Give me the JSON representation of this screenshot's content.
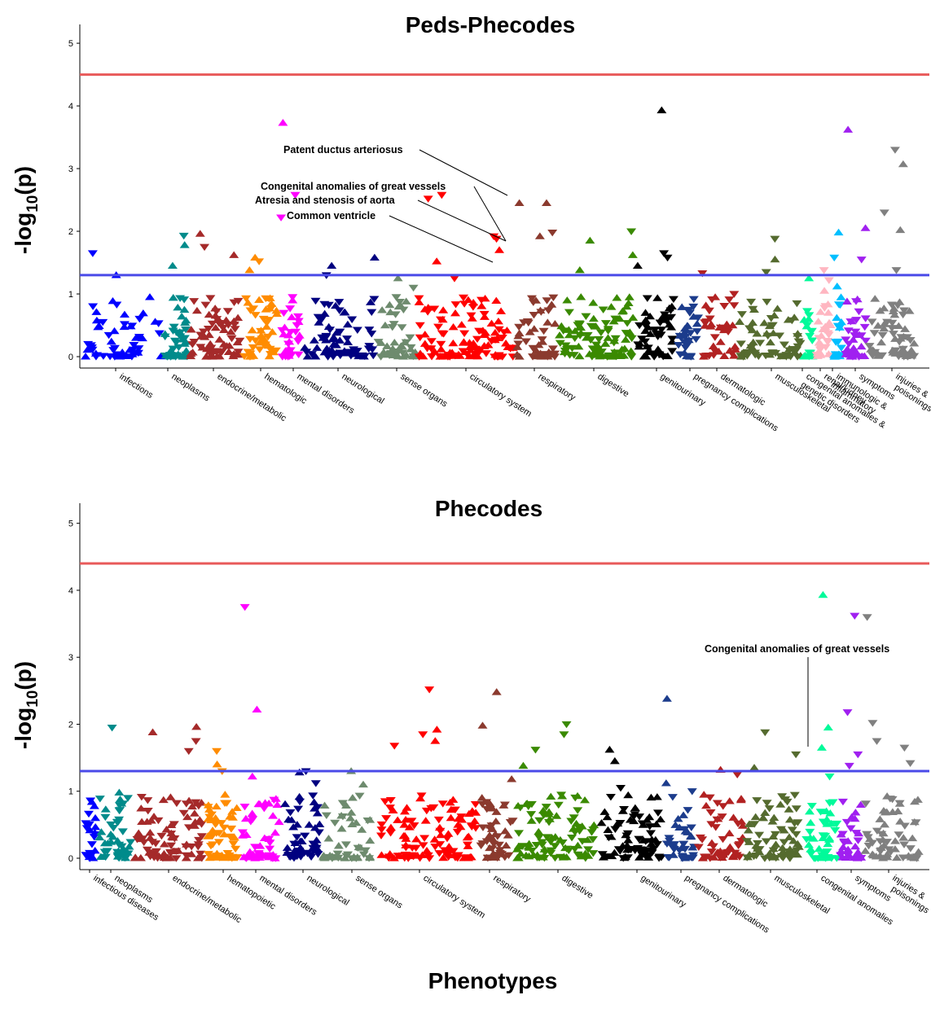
{
  "xlabel": "Phenotypes",
  "chart_data": [
    {
      "type": "scatter",
      "title": "Peds-Phecodes",
      "ylabel": "-log10(p)",
      "ylim": [
        0,
        5.3
      ],
      "yticks": [
        0,
        1,
        2,
        3,
        4,
        5
      ],
      "grid": false,
      "legend": "none",
      "threshold_lines": [
        {
          "y": 4.5,
          "color": "#e85a5a"
        },
        {
          "y": 1.3,
          "color": "#4a4ae8"
        }
      ],
      "categories": [
        {
          "name": "infections",
          "color": "#0000ff",
          "n": 55,
          "top": [
            1.65,
            0.95,
            1.3
          ]
        },
        {
          "name": "neoplasms",
          "color": "#008b8b",
          "n": 45,
          "top": [
            1.93,
            1.78,
            1.45
          ]
        },
        {
          "name": "endocrine/metabolic",
          "color": "#a52a2a",
          "n": 70,
          "top": [
            1.96,
            1.75,
            1.62
          ]
        },
        {
          "name": "hematologic",
          "color": "#ff8c00",
          "n": 50,
          "top": [
            1.58,
            1.52,
            1.38
          ]
        },
        {
          "name": "mental disorders",
          "color": "#ff00ff",
          "n": 30,
          "top": [
            3.73,
            2.58,
            2.22
          ]
        },
        {
          "name": "neurological",
          "color": "#000080",
          "n": 70,
          "top": [
            1.58,
            1.45,
            1.3
          ]
        },
        {
          "name": "sense organs",
          "color": "#6e8b6e",
          "n": 45,
          "top": [
            1.25,
            1.1,
            0.95
          ]
        },
        {
          "name": "circulatory system",
          "color": "#ff0000",
          "n": 110,
          "top": [
            2.58,
            2.52,
            1.92,
            1.88,
            1.7,
            1.52,
            1.25
          ]
        },
        {
          "name": "respiratory",
          "color": "#8b3a2e",
          "n": 45,
          "top": [
            2.45,
            2.45,
            1.98,
            1.92
          ]
        },
        {
          "name": "digestive",
          "color": "#3a8a00",
          "n": 95,
          "top": [
            2.0,
            1.85,
            1.62,
            1.38
          ]
        },
        {
          "name": "genitourinary",
          "color": "#000000",
          "n": 50,
          "top": [
            3.93,
            1.65,
            1.58,
            1.45
          ]
        },
        {
          "name": "pregnancy complications",
          "color": "#1c3c8c",
          "n": 30,
          "top": [
            0.92,
            0.8,
            0.7
          ]
        },
        {
          "name": "dermatologic",
          "color": "#b22222",
          "n": 35,
          "top": [
            1.33,
            1.0,
            0.82
          ]
        },
        {
          "name": "musculoskeletal",
          "color": "#556b2f",
          "n": 70,
          "top": [
            1.88,
            1.55,
            1.35
          ]
        },
        {
          "name": "congenital anomalies & genetic disorders",
          "color": "#00fa9a",
          "n": 15,
          "top": [
            1.25,
            0.6
          ]
        },
        {
          "name": "renal/kidney",
          "color": "#ffb6c1",
          "n": 30,
          "top": [
            1.38,
            1.22,
            1.05
          ]
        },
        {
          "name": "immunologic & inflammatory",
          "color": "#00bfff",
          "n": 20,
          "top": [
            1.98,
            1.58,
            1.12
          ]
        },
        {
          "name": "symptoms",
          "color": "#a020f0",
          "n": 35,
          "top": [
            3.62,
            2.05,
            1.55
          ]
        },
        {
          "name": "injuries & poisonings",
          "color": "#808080",
          "n": 60,
          "top": [
            3.3,
            3.07,
            2.3,
            2.02,
            1.38
          ]
        }
      ],
      "annotations": [
        {
          "text": "Patent ductus arteriosus",
          "x_category": "circulatory system",
          "y": 2.58
        },
        {
          "text": "Congenital anomalies of great vessels",
          "x_category": "circulatory system",
          "y": 1.88
        },
        {
          "text": "Atresia and stenosis of aorta",
          "x_category": "circulatory system",
          "y": 1.88
        },
        {
          "text": "Common ventricle",
          "x_category": "circulatory system",
          "y": 1.52
        }
      ]
    },
    {
      "type": "scatter",
      "title": "Phecodes",
      "ylabel": "-log10(p)",
      "ylim": [
        0,
        5.3
      ],
      "yticks": [
        0,
        1,
        2,
        3,
        4,
        5
      ],
      "grid": false,
      "legend": "none",
      "threshold_lines": [
        {
          "y": 4.4,
          "color": "#e85a5a"
        },
        {
          "y": 1.3,
          "color": "#4a4ae8"
        }
      ],
      "categories": [
        {
          "name": "infectious diseases",
          "color": "#0000ff",
          "n": 20,
          "top": [
            0.6,
            0.45,
            0.38
          ]
        },
        {
          "name": "neoplasms",
          "color": "#008b8b",
          "n": 45,
          "top": [
            1.95,
            0.98,
            0.72
          ]
        },
        {
          "name": "endocrine/metabolic",
          "color": "#a52a2a",
          "n": 85,
          "top": [
            1.96,
            1.88,
            1.75,
            1.6
          ]
        },
        {
          "name": "hematopoietic",
          "color": "#ff8c00",
          "n": 55,
          "top": [
            1.6,
            1.4,
            1.3
          ]
        },
        {
          "name": "mental disorders",
          "color": "#ff00ff",
          "n": 50,
          "top": [
            3.75,
            2.22,
            1.22
          ]
        },
        {
          "name": "neurological",
          "color": "#000080",
          "n": 50,
          "top": [
            1.3,
            1.28,
            1.12
          ]
        },
        {
          "name": "sense organs",
          "color": "#6e8b6e",
          "n": 50,
          "top": [
            1.3,
            1.1,
            0.9
          ]
        },
        {
          "name": "circulatory system",
          "color": "#ff0000",
          "n": 110,
          "top": [
            2.52,
            1.92,
            1.85,
            1.75,
            1.68
          ]
        },
        {
          "name": "respiratory",
          "color": "#8b3a2e",
          "n": 45,
          "top": [
            2.48,
            1.98,
            1.18
          ]
        },
        {
          "name": "digestive",
          "color": "#3a8a00",
          "n": 95,
          "top": [
            2.0,
            1.85,
            1.62,
            1.38
          ]
        },
        {
          "name": "genitourinary",
          "color": "#000000",
          "n": 75,
          "top": [
            1.62,
            1.45,
            1.05
          ]
        },
        {
          "name": "pregnancy complications",
          "color": "#1c3c8c",
          "n": 35,
          "top": [
            2.38,
            1.12,
            1.0
          ]
        },
        {
          "name": "dermatologic",
          "color": "#b22222",
          "n": 50,
          "top": [
            1.32,
            1.25,
            0.78
          ]
        },
        {
          "name": "musculoskeletal",
          "color": "#556b2f",
          "n": 70,
          "top": [
            1.88,
            1.55,
            1.35
          ]
        },
        {
          "name": "congenital anomalies",
          "color": "#00fa9a",
          "n": 40,
          "top": [
            3.93,
            1.95,
            1.65,
            1.22
          ]
        },
        {
          "name": "symptoms",
          "color": "#a020f0",
          "n": 30,
          "top": [
            3.62,
            2.18,
            1.55,
            1.38
          ]
        },
        {
          "name": "injuries & poisonings",
          "color": "#808080",
          "n": 60,
          "top": [
            3.6,
            2.02,
            1.75,
            1.65,
            1.42
          ]
        }
      ],
      "annotations": [
        {
          "text": "Congenital anomalies of great vessels",
          "x_category": "congenital anomalies",
          "y": 1.65
        }
      ]
    }
  ]
}
